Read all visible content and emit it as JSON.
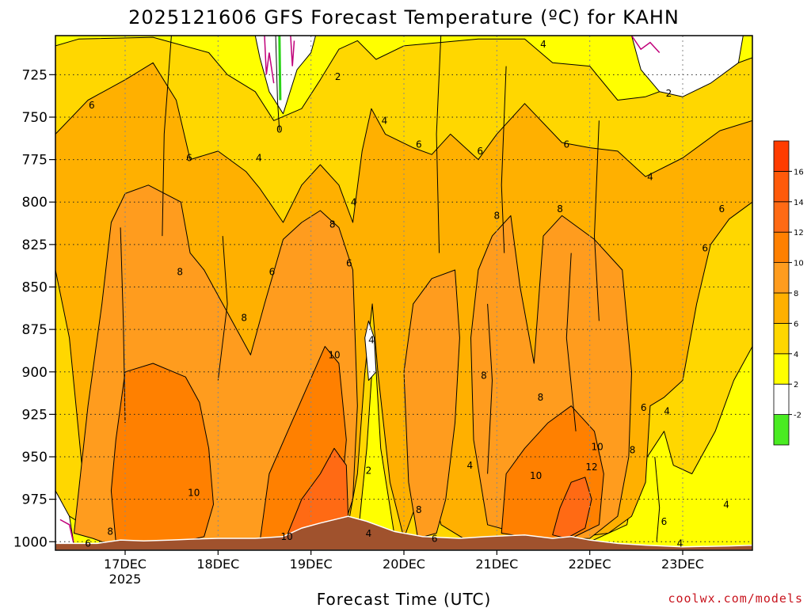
{
  "chart_data": {
    "type": "heatmap",
    "title": "2025121606 GFS Forecast Temperature (ºC) for KAHN",
    "xlabel": "Forecast Time (UTC)",
    "y_ticks": [
      725,
      750,
      775,
      800,
      825,
      850,
      875,
      900,
      925,
      950,
      975,
      1000
    ],
    "ylim": [
      1005,
      702
    ],
    "y_unit": "hPa",
    "x_ticks": [
      {
        "label": "17DEC",
        "sub": "2025",
        "day": 17
      },
      {
        "label": "18DEC",
        "sub": "",
        "day": 18
      },
      {
        "label": "19DEC",
        "sub": "",
        "day": 19
      },
      {
        "label": "20DEC",
        "sub": "",
        "day": 20
      },
      {
        "label": "21DEC",
        "sub": "",
        "day": 21
      },
      {
        "label": "22DEC",
        "sub": "",
        "day": 22
      },
      {
        "label": "23DEC",
        "sub": "",
        "day": 23
      }
    ],
    "xlim": [
      16.25,
      23.75
    ],
    "grid": true,
    "colorbar": {
      "position": "right",
      "bins": [
        {
          "lo": -4,
          "hi": -2,
          "color": "#4aeb22"
        },
        {
          "lo": -2,
          "hi": 2,
          "color": "#ffffff"
        },
        {
          "lo": 2,
          "hi": 4,
          "color": "#ffff00"
        },
        {
          "lo": 4,
          "hi": 6,
          "color": "#ffd700"
        },
        {
          "lo": 6,
          "hi": 8,
          "color": "#ffb000"
        },
        {
          "lo": 8,
          "hi": 10,
          "color": "#ff9c1e"
        },
        {
          "lo": 10,
          "hi": 12,
          "color": "#ff8000"
        },
        {
          "lo": 12,
          "hi": 14,
          "color": "#ff6a14"
        },
        {
          "lo": 14,
          "hi": 16,
          "color": "#ff5a0a"
        },
        {
          "lo": 16,
          "hi": 18,
          "color": "#ff3c00"
        }
      ],
      "tick_labels": [
        "-2",
        "2",
        "4",
        "6",
        "8",
        "10",
        "12",
        "14",
        "16"
      ]
    },
    "terrain_color": "#a0522d",
    "surface_pressure": [
      [
        16.25,
        1001
      ],
      [
        16.7,
        1001
      ],
      [
        16.95,
        999
      ],
      [
        17.2,
        999.5
      ],
      [
        17.5,
        999
      ],
      [
        17.7,
        998.5
      ],
      [
        18.0,
        998
      ],
      [
        18.4,
        998
      ],
      [
        18.7,
        997
      ],
      [
        18.9,
        992
      ],
      [
        19.1,
        989
      ],
      [
        19.4,
        985
      ],
      [
        19.6,
        988
      ],
      [
        19.9,
        994
      ],
      [
        20.2,
        997
      ],
      [
        20.6,
        998
      ],
      [
        20.9,
        997
      ],
      [
        21.3,
        996
      ],
      [
        21.6,
        998
      ],
      [
        21.8,
        997
      ],
      [
        22.0,
        999
      ],
      [
        22.3,
        1001
      ],
      [
        22.6,
        1002
      ],
      [
        23.0,
        1003
      ],
      [
        23.5,
        1002.5
      ],
      [
        23.75,
        1002
      ]
    ],
    "contour_labels": [
      {
        "text": "2",
        "day": 19.29,
        "p": 728
      },
      {
        "text": "0",
        "day": 18.66,
        "p": 759
      },
      {
        "text": "4",
        "day": 21.5,
        "p": 709
      },
      {
        "text": "2",
        "day": 22.85,
        "p": 738
      },
      {
        "text": "6",
        "day": 16.64,
        "p": 745
      },
      {
        "text": "6",
        "day": 17.69,
        "p": 776
      },
      {
        "text": "4",
        "day": 18.44,
        "p": 776
      },
      {
        "text": "4",
        "day": 19.79,
        "p": 754
      },
      {
        "text": "6",
        "day": 20.16,
        "p": 768
      },
      {
        "text": "6",
        "day": 20.82,
        "p": 772
      },
      {
        "text": "6",
        "day": 21.75,
        "p": 768
      },
      {
        "text": "4",
        "day": 22.65,
        "p": 787
      },
      {
        "text": "4",
        "day": 19.46,
        "p": 802
      },
      {
        "text": "6",
        "day": 23.42,
        "p": 806
      },
      {
        "text": "8",
        "day": 21.0,
        "p": 810
      },
      {
        "text": "8",
        "day": 21.68,
        "p": 806
      },
      {
        "text": "8",
        "day": 19.23,
        "p": 815
      },
      {
        "text": "8",
        "day": 17.59,
        "p": 843
      },
      {
        "text": "6",
        "day": 18.58,
        "p": 843
      },
      {
        "text": "6",
        "day": 19.41,
        "p": 838
      },
      {
        "text": "6",
        "day": 23.24,
        "p": 829
      },
      {
        "text": "8",
        "day": 18.28,
        "p": 870
      },
      {
        "text": "4",
        "day": 19.65,
        "p": 883
      },
      {
        "text": "10",
        "day": 19.25,
        "p": 892
      },
      {
        "text": "8",
        "day": 20.86,
        "p": 904
      },
      {
        "text": "8",
        "day": 21.47,
        "p": 917
      },
      {
        "text": "6",
        "day": 22.58,
        "p": 923
      },
      {
        "text": "4",
        "day": 22.83,
        "p": 925
      },
      {
        "text": "10",
        "day": 22.08,
        "p": 946
      },
      {
        "text": "8",
        "day": 22.46,
        "p": 948
      },
      {
        "text": "4",
        "day": 20.71,
        "p": 957
      },
      {
        "text": "2",
        "day": 19.62,
        "p": 960
      },
      {
        "text": "10",
        "day": 21.42,
        "p": 963
      },
      {
        "text": "12",
        "day": 22.02,
        "p": 958
      },
      {
        "text": "10",
        "day": 17.74,
        "p": 973
      },
      {
        "text": "8",
        "day": 20.16,
        "p": 983
      },
      {
        "text": "4",
        "day": 23.47,
        "p": 980
      },
      {
        "text": "8",
        "day": 16.84,
        "p": 996
      },
      {
        "text": "10",
        "day": 18.74,
        "p": 999
      },
      {
        "text": "4",
        "day": 19.62,
        "p": 997
      },
      {
        "text": "6",
        "day": 20.33,
        "p": 1000
      },
      {
        "text": "6",
        "day": 22.8,
        "p": 990
      },
      {
        "text": "6",
        "day": 16.6,
        "p": 1003
      },
      {
        "text": "4",
        "day": 22.97,
        "p": 1003
      }
    ]
  },
  "credit": "coolwx.com/models"
}
